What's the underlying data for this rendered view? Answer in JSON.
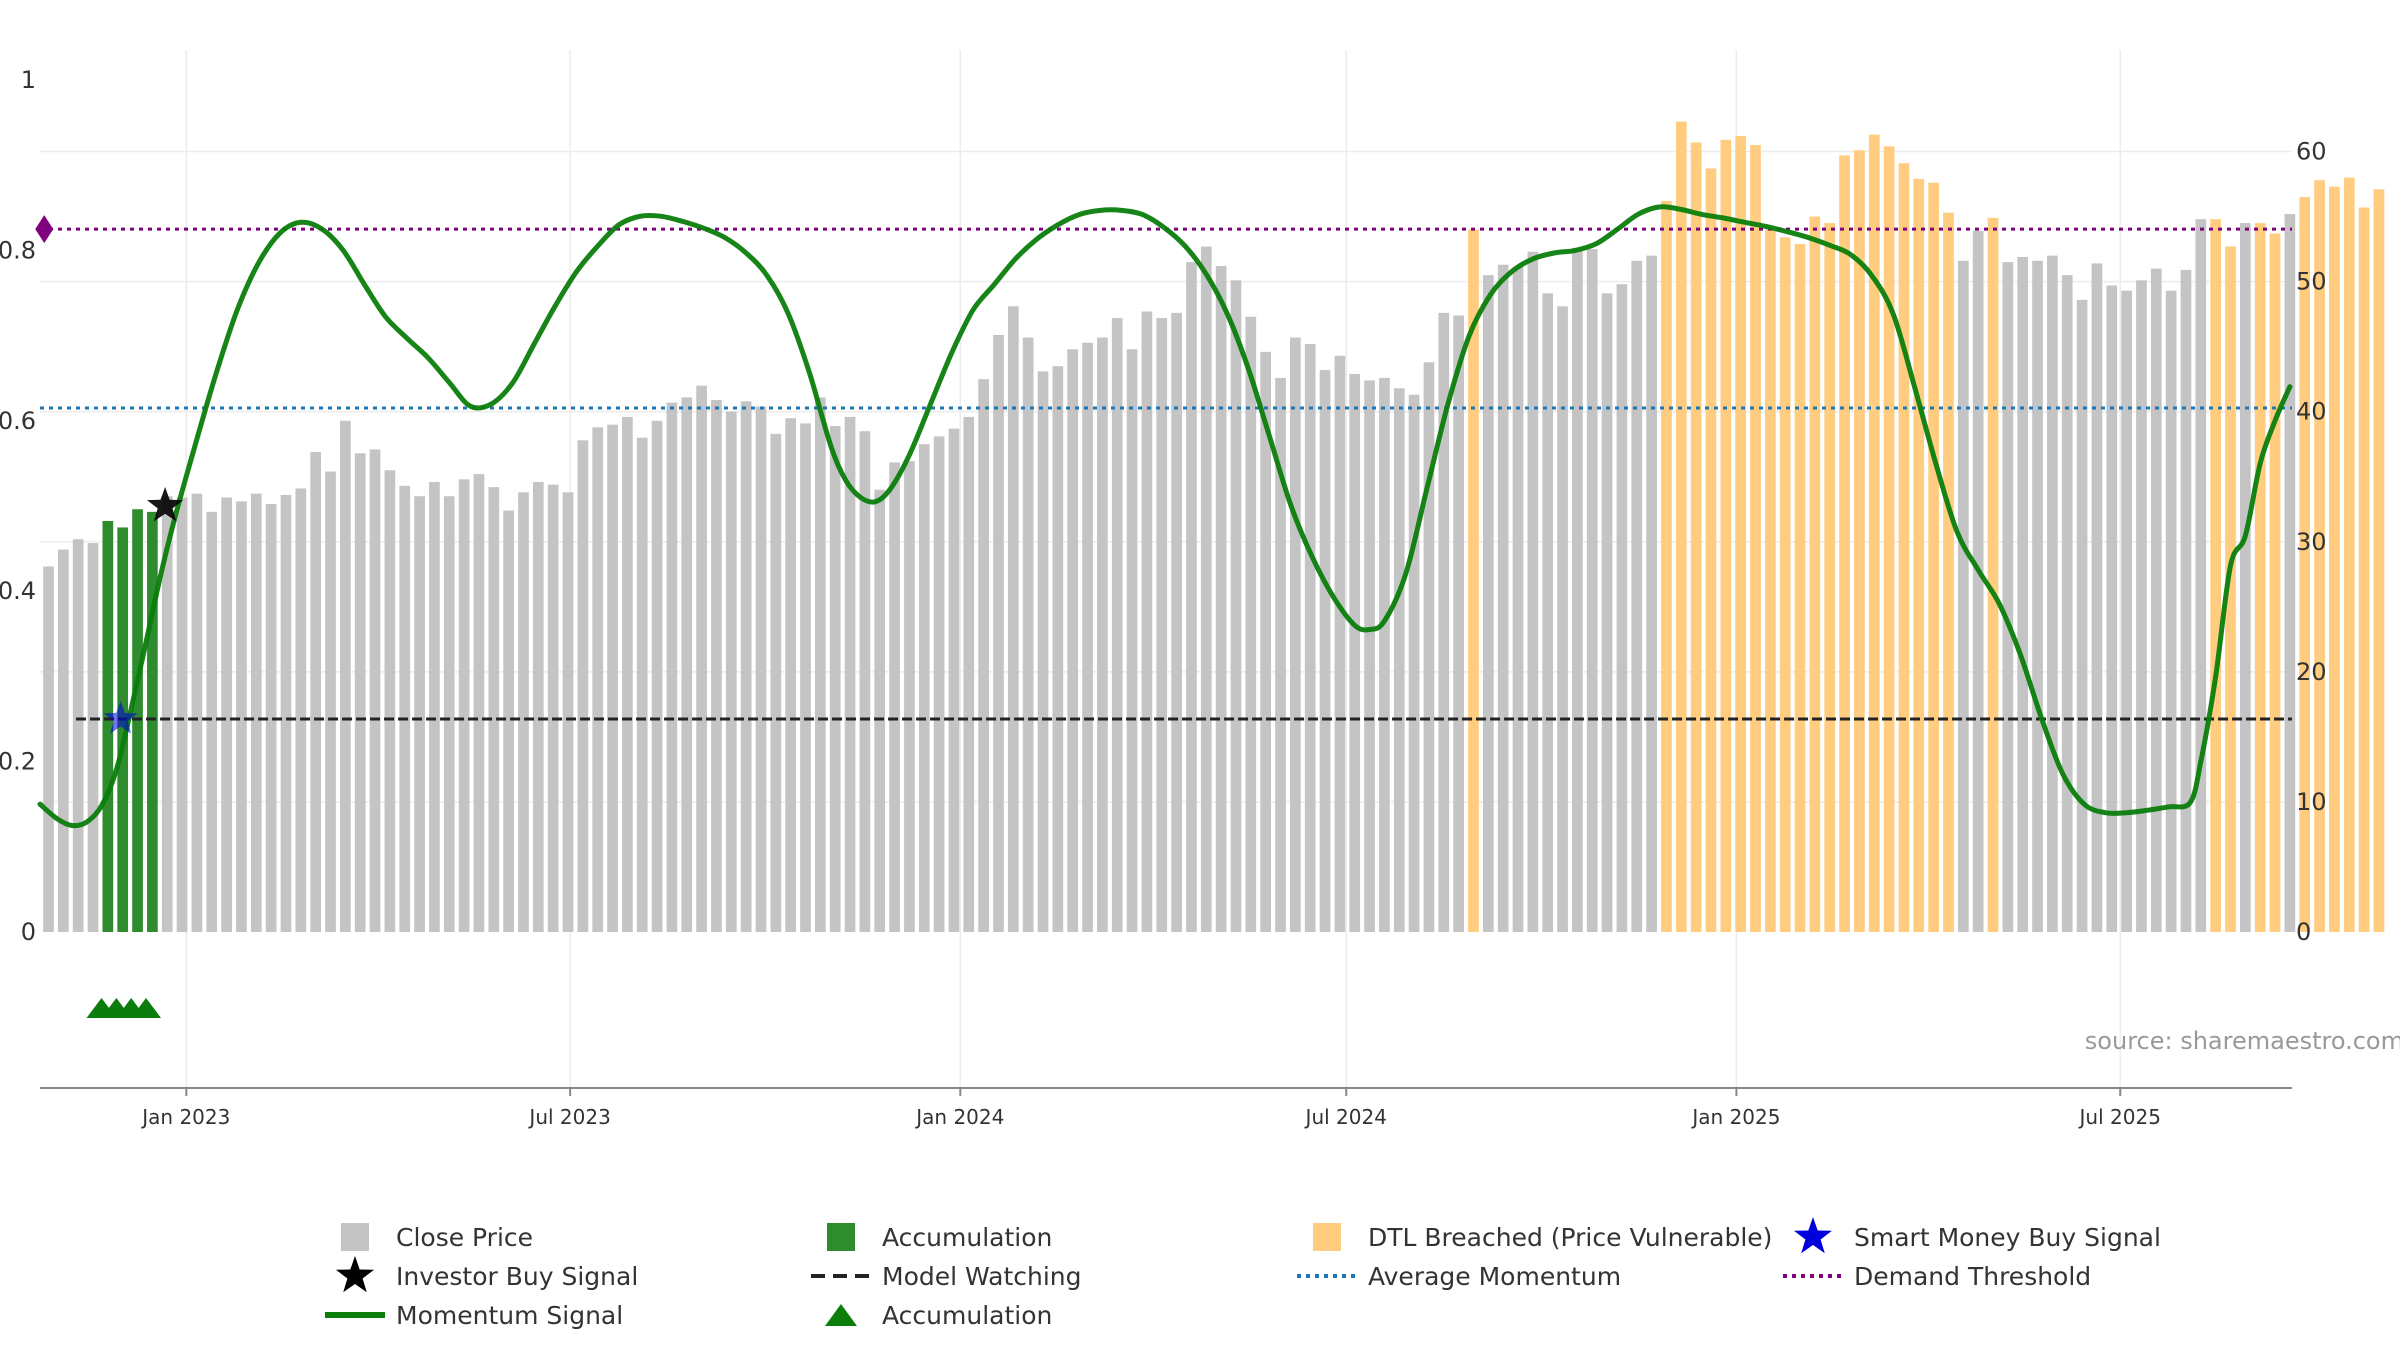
{
  "source_text": "source: sharemaestro.com",
  "colors": {
    "close_price": "#c4c4c4",
    "accumulation_bar": "#2e8b2e",
    "dtl_breached": "#ffcc80",
    "momentum": "#0a7d0a",
    "average_momentum": "#1f77b4",
    "demand_threshold": "#800080",
    "model_watching": "#222222",
    "smart_money": "#0000dd",
    "investor_buy": "#000000"
  },
  "chart_data": {
    "type": "bar",
    "left_axis": {
      "range": [
        0,
        1
      ],
      "ticks": [
        0,
        0.2,
        0.4,
        0.6,
        0.8,
        1
      ],
      "tick_labels": [
        "0",
        "0.2",
        "0.4",
        "0.6",
        "0.8",
        "1"
      ]
    },
    "right_axis": {
      "range": [
        0,
        65.5
      ],
      "ticks": [
        0,
        10,
        20,
        30,
        40,
        50,
        60
      ],
      "tick_labels": [
        "0",
        "10",
        "20",
        "30",
        "40",
        "50",
        "60"
      ]
    },
    "x_axis": {
      "start": "2022-10-24",
      "end": "2025-09-20",
      "ticks": [
        {
          "date": "2023-01-01",
          "label": "Jan 2023"
        },
        {
          "date": "2023-07-01",
          "label": "Jul 2023"
        },
        {
          "date": "2024-01-01",
          "label": "Jan 2024"
        },
        {
          "date": "2024-07-01",
          "label": "Jul 2024"
        },
        {
          "date": "2025-01-01",
          "label": "Jan 2025"
        },
        {
          "date": "2025-07-01",
          "label": "Jul 2025"
        }
      ]
    },
    "grid": true,
    "legend_position": "bottom",
    "bars": {
      "first_date": "2022-10-28",
      "interval_days": 7,
      "close_price": [
        28.1,
        29.4,
        30.2,
        29.9,
        31.6,
        31.1,
        32.5,
        32.3,
        33.5,
        33.4,
        33.7,
        32.3,
        33.4,
        33.1,
        33.7,
        32.9,
        33.6,
        34.1,
        36.9,
        35.4,
        39.3,
        36.8,
        37.1,
        35.5,
        34.3,
        33.5,
        34.6,
        33.5,
        34.8,
        35.2,
        34.2,
        32.4,
        33.8,
        34.6,
        34.4,
        33.8,
        37.8,
        38.8,
        39.0,
        39.6,
        38.0,
        39.3,
        40.7,
        41.1,
        42.0,
        40.9,
        40.0,
        40.8,
        40.4,
        38.3,
        39.5,
        39.1,
        41.1,
        38.9,
        39.6,
        38.5,
        34.0,
        36.1,
        36.2,
        37.5,
        38.1,
        38.7,
        39.6,
        42.5,
        45.9,
        48.1,
        45.7,
        43.1,
        43.5,
        44.8,
        45.3,
        45.7,
        47.2,
        44.8,
        47.7,
        47.2,
        47.6,
        51.5,
        52.7,
        51.2,
        50.1,
        47.3,
        44.6,
        42.6,
        45.7,
        45.2,
        43.2,
        44.3,
        42.9,
        42.4,
        42.6,
        41.8,
        41.3,
        43.8,
        47.6,
        47.4,
        54.0,
        50.5,
        51.3,
        51.1,
        52.3,
        49.1,
        48.1,
        52.6,
        52.5,
        49.1,
        49.8,
        51.6,
        52.0,
        56.2,
        62.3,
        60.7,
        58.7,
        60.9,
        61.2,
        60.5,
        54.0,
        53.4,
        52.9,
        55.0,
        54.5,
        59.7,
        60.1,
        61.3,
        60.4,
        59.1,
        57.9,
        57.6,
        55.3,
        51.6,
        53.9,
        54.9,
        51.5,
        51.9,
        51.6,
        52.0,
        50.5,
        48.6,
        51.4,
        49.7,
        49.3,
        50.1,
        51.0,
        49.3,
        50.9,
        54.8,
        54.8,
        52.7,
        54.5,
        54.5,
        53.7,
        55.2,
        56.5,
        57.8,
        57.3,
        58.0,
        55.7,
        57.1
      ],
      "categories_note": "",
      "category": [
        "c",
        "c",
        "c",
        "c",
        "a",
        "a",
        "a",
        "a",
        "c",
        "c",
        "c",
        "c",
        "c",
        "c",
        "c",
        "c",
        "c",
        "c",
        "c",
        "c",
        "c",
        "c",
        "c",
        "c",
        "c",
        "c",
        "c",
        "c",
        "c",
        "c",
        "c",
        "c",
        "c",
        "c",
        "c",
        "c",
        "c",
        "c",
        "c",
        "c",
        "c",
        "c",
        "c",
        "c",
        "c",
        "c",
        "c",
        "c",
        "c",
        "c",
        "c",
        "c",
        "c",
        "c",
        "c",
        "c",
        "c",
        "c",
        "c",
        "c",
        "c",
        "c",
        "c",
        "c",
        "c",
        "c",
        "c",
        "c",
        "c",
        "c",
        "c",
        "c",
        "c",
        "c",
        "c",
        "c",
        "c",
        "c",
        "c",
        "c",
        "c",
        "c",
        "c",
        "c",
        "c",
        "c",
        "c",
        "c",
        "c",
        "c",
        "c",
        "c",
        "c",
        "c",
        "c",
        "c",
        "d",
        "c",
        "c",
        "c",
        "c",
        "c",
        "c",
        "c",
        "c",
        "c",
        "c",
        "c",
        "c",
        "d",
        "d",
        "d",
        "d",
        "d",
        "d",
        "d",
        "d",
        "d",
        "d",
        "d",
        "d",
        "d",
        "d",
        "d",
        "d",
        "d",
        "d",
        "d",
        "d",
        "c",
        "c",
        "d",
        "c",
        "c",
        "c",
        "c",
        "c",
        "c",
        "c",
        "c",
        "c",
        "c",
        "c",
        "c",
        "c",
        "c",
        "d",
        "d",
        "c",
        "d",
        "d",
        "c",
        "d",
        "d",
        "d",
        "d",
        "d",
        "d",
        "d",
        "d"
      ]
    },
    "series": [
      {
        "name": "Momentum Signal",
        "axis": "left",
        "type": "line",
        "points": [
          [
            "2022-10-24",
            0.15
          ],
          [
            "2022-11-01",
            0.133
          ],
          [
            "2022-11-08",
            0.125
          ],
          [
            "2022-11-15",
            0.129
          ],
          [
            "2022-11-22",
            0.148
          ],
          [
            "2022-11-29",
            0.19
          ],
          [
            "2022-12-06",
            0.262
          ],
          [
            "2022-12-13",
            0.34
          ],
          [
            "2022-12-20",
            0.42
          ],
          [
            "2022-12-27",
            0.49
          ],
          [
            "2023-01-05",
            0.57
          ],
          [
            "2023-01-15",
            0.655
          ],
          [
            "2023-01-25",
            0.73
          ],
          [
            "2023-02-04",
            0.785
          ],
          [
            "2023-02-14",
            0.82
          ],
          [
            "2023-02-24",
            0.833
          ],
          [
            "2023-03-06",
            0.825
          ],
          [
            "2023-03-16",
            0.8
          ],
          [
            "2023-03-26",
            0.76
          ],
          [
            "2023-04-05",
            0.722
          ],
          [
            "2023-04-15",
            0.697
          ],
          [
            "2023-04-25",
            0.674
          ],
          [
            "2023-05-05",
            0.645
          ],
          [
            "2023-05-15",
            0.617
          ],
          [
            "2023-05-25",
            0.62
          ],
          [
            "2023-06-04",
            0.645
          ],
          [
            "2023-06-14",
            0.69
          ],
          [
            "2023-06-24",
            0.735
          ],
          [
            "2023-07-04",
            0.775
          ],
          [
            "2023-07-14",
            0.805
          ],
          [
            "2023-07-24",
            0.83
          ],
          [
            "2023-08-03",
            0.84
          ],
          [
            "2023-08-13",
            0.84
          ],
          [
            "2023-08-23",
            0.834
          ],
          [
            "2023-09-02",
            0.826
          ],
          [
            "2023-09-12",
            0.815
          ],
          [
            "2023-09-22",
            0.797
          ],
          [
            "2023-10-02",
            0.77
          ],
          [
            "2023-10-12",
            0.725
          ],
          [
            "2023-10-22",
            0.655
          ],
          [
            "2023-11-01",
            0.57
          ],
          [
            "2023-11-08",
            0.53
          ],
          [
            "2023-11-15",
            0.51
          ],
          [
            "2023-11-22",
            0.505
          ],
          [
            "2023-11-29",
            0.52
          ],
          [
            "2023-12-08",
            0.56
          ],
          [
            "2023-12-18",
            0.62
          ],
          [
            "2023-12-28",
            0.68
          ],
          [
            "2024-01-07",
            0.73
          ],
          [
            "2024-01-17",
            0.76
          ],
          [
            "2024-01-27",
            0.79
          ],
          [
            "2024-02-06",
            0.813
          ],
          [
            "2024-02-16",
            0.83
          ],
          [
            "2024-02-26",
            0.842
          ],
          [
            "2024-03-07",
            0.847
          ],
          [
            "2024-03-17",
            0.847
          ],
          [
            "2024-03-27",
            0.842
          ],
          [
            "2024-04-06",
            0.827
          ],
          [
            "2024-04-16",
            0.805
          ],
          [
            "2024-04-26",
            0.772
          ],
          [
            "2024-05-06",
            0.725
          ],
          [
            "2024-05-16",
            0.66
          ],
          [
            "2024-05-26",
            0.58
          ],
          [
            "2024-06-05",
            0.5
          ],
          [
            "2024-06-15",
            0.44
          ],
          [
            "2024-06-25",
            0.393
          ],
          [
            "2024-07-05",
            0.36
          ],
          [
            "2024-07-12",
            0.355
          ],
          [
            "2024-07-19",
            0.365
          ],
          [
            "2024-07-29",
            0.42
          ],
          [
            "2024-08-08",
            0.52
          ],
          [
            "2024-08-18",
            0.62
          ],
          [
            "2024-08-28",
            0.7
          ],
          [
            "2024-09-07",
            0.748
          ],
          [
            "2024-09-17",
            0.775
          ],
          [
            "2024-09-27",
            0.79
          ],
          [
            "2024-10-07",
            0.797
          ],
          [
            "2024-10-17",
            0.8
          ],
          [
            "2024-10-27",
            0.808
          ],
          [
            "2024-11-06",
            0.825
          ],
          [
            "2024-11-16",
            0.843
          ],
          [
            "2024-11-26",
            0.851
          ],
          [
            "2024-12-06",
            0.848
          ],
          [
            "2024-12-16",
            0.842
          ],
          [
            "2024-12-26",
            0.838
          ],
          [
            "2025-01-05",
            0.833
          ],
          [
            "2025-01-15",
            0.828
          ],
          [
            "2025-01-25",
            0.822
          ],
          [
            "2025-02-04",
            0.815
          ],
          [
            "2025-02-14",
            0.806
          ],
          [
            "2025-02-24",
            0.795
          ],
          [
            "2025-03-06",
            0.77
          ],
          [
            "2025-03-16",
            0.725
          ],
          [
            "2025-03-26",
            0.64
          ],
          [
            "2025-04-05",
            0.55
          ],
          [
            "2025-04-15",
            0.47
          ],
          [
            "2025-04-25",
            0.425
          ],
          [
            "2025-05-05",
            0.385
          ],
          [
            "2025-05-15",
            0.325
          ],
          [
            "2025-05-25",
            0.25
          ],
          [
            "2025-06-04",
            0.185
          ],
          [
            "2025-06-14",
            0.15
          ],
          [
            "2025-06-24",
            0.14
          ],
          [
            "2025-07-04",
            0.14
          ],
          [
            "2025-07-14",
            0.143
          ],
          [
            "2025-07-24",
            0.147
          ],
          [
            "2025-08-03",
            0.152
          ],
          [
            "2025-08-08",
            0.2
          ],
          [
            "2025-08-15",
            0.3
          ],
          [
            "2025-08-22",
            0.43
          ],
          [
            "2025-08-29",
            0.465
          ],
          [
            "2025-09-05",
            0.55
          ],
          [
            "2025-09-12",
            0.6
          ],
          [
            "2025-09-19",
            0.64
          ]
        ]
      },
      {
        "name": "Average Momentum",
        "axis": "left",
        "type": "hline",
        "value": 0.615
      },
      {
        "name": "Demand Threshold",
        "axis": "left",
        "type": "hline",
        "value": 0.825
      },
      {
        "name": "Model Watching",
        "axis": "left",
        "type": "hline",
        "value": 0.25,
        "start": "2022-11-10"
      }
    ],
    "markers": {
      "demand_threshold_diamond": {
        "date": "2022-10-26",
        "value": 0.825
      },
      "smart_money_buy_signal": [
        {
          "date": "2022-12-01",
          "value": 0.25
        }
      ],
      "investor_buy_signal": [
        {
          "date": "2022-12-22",
          "value": 0.5
        }
      ],
      "accumulation_triangles": [
        "2022-11-22",
        "2022-11-29",
        "2022-12-06",
        "2022-12-13"
      ]
    }
  },
  "legend": [
    {
      "label": "Close Price",
      "kind": "square",
      "color_key": "close_price"
    },
    {
      "label": "Accumulation",
      "kind": "square",
      "color_key": "accumulation_bar"
    },
    {
      "label": "DTL Breached (Price Vulnerable)",
      "kind": "square",
      "color_key": "dtl_breached"
    },
    {
      "label": "Smart Money Buy Signal",
      "kind": "star",
      "color_key": "smart_money"
    },
    {
      "label": "Investor Buy Signal",
      "kind": "star",
      "color_key": "investor_buy"
    },
    {
      "label": "Model Watching",
      "kind": "dash",
      "color_key": "model_watching"
    },
    {
      "label": "Average Momentum",
      "kind": "dot",
      "color_key": "average_momentum"
    },
    {
      "label": "Demand Threshold",
      "kind": "dot",
      "color_key": "demand_threshold"
    },
    {
      "label": "Momentum Signal",
      "kind": "line",
      "color_key": "momentum"
    },
    {
      "label": "Accumulation",
      "kind": "triangle",
      "color_key": "momentum"
    }
  ]
}
